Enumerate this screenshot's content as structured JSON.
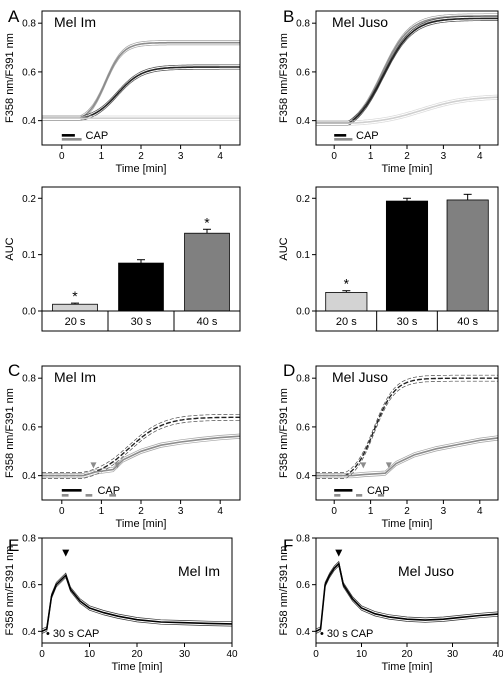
{
  "chart_data": [
    {
      "panel": "A",
      "title": "Mel Im",
      "type": "line",
      "xlabel": "Time [min]",
      "ylabel": "F358 nm/F391 nm",
      "xlim": [
        -0.5,
        4.5
      ],
      "ylim": [
        0.3,
        0.85
      ],
      "xticks": [
        "0",
        "1",
        "2",
        "3",
        "4"
      ],
      "yticks": [
        "0.4",
        "0.6",
        "0.8"
      ],
      "stimulus": {
        "label": "CAP",
        "bars": [
          {
            "start": 0,
            "end": 0.33,
            "color": "#000000"
          },
          {
            "start": 0,
            "end": 0.5,
            "color": "#8c8c8c"
          }
        ]
      },
      "series": [
        {
          "color": "#8c8c8c",
          "base": 0.41,
          "max": 0.72,
          "onset": 0.45,
          "half": 1.1,
          "k": 4.5
        },
        {
          "color": "#222222",
          "base": 0.41,
          "max": 0.62,
          "onset": 0.5,
          "half": 1.4,
          "k": 3.2
        },
        {
          "color": "#cfcfcf",
          "base": 0.41,
          "max": 0.41,
          "onset": 0.5,
          "half": 1.0,
          "k": 3.0
        }
      ]
    },
    {
      "panel": "B",
      "title": "Mel Juso",
      "type": "line",
      "xlabel": "Time [min]",
      "ylabel": "F358 nm/F391 nm",
      "xlim": [
        -0.5,
        4.5
      ],
      "ylim": [
        0.3,
        0.85
      ],
      "xticks": [
        "0",
        "1",
        "2",
        "3",
        "4"
      ],
      "yticks": [
        "0.4",
        "0.6",
        "0.8"
      ],
      "stimulus": {
        "label": "CAP",
        "bars": [
          {
            "start": 0,
            "end": 0.33,
            "color": "#000000"
          },
          {
            "start": 0,
            "end": 0.5,
            "color": "#8c8c8c"
          }
        ]
      },
      "series": [
        {
          "color": "#8c8c8c",
          "base": 0.39,
          "max": 0.83,
          "onset": 0.4,
          "half": 1.3,
          "k": 2.6
        },
        {
          "color": "#222222",
          "base": 0.39,
          "max": 0.82,
          "onset": 0.4,
          "half": 1.35,
          "k": 2.5
        },
        {
          "color": "#cfcfcf",
          "base": 0.39,
          "max": 0.5,
          "onset": 0.5,
          "half": 2.4,
          "k": 1.6
        }
      ]
    },
    {
      "panel": "",
      "type": "bar",
      "ylabel": "AUC",
      "ylim": [
        0,
        0.22
      ],
      "yticks": [
        "0.0",
        "0.1",
        "0.2"
      ],
      "categories": [
        "20 s",
        "30 s",
        "40 s"
      ],
      "values": [
        0.012,
        0.085,
        0.138
      ],
      "errors": [
        0.002,
        0.006,
        0.007
      ],
      "colors": [
        "#d3d3d3",
        "#000000",
        "#808080"
      ],
      "significance": [
        "*",
        "",
        "*"
      ]
    },
    {
      "panel": "",
      "type": "bar",
      "ylabel": "AUC",
      "ylim": [
        0,
        0.22
      ],
      "yticks": [
        "0.0",
        "0.1",
        "0.2"
      ],
      "categories": [
        "20 s",
        "30 s",
        "40 s"
      ],
      "values": [
        0.033,
        0.195,
        0.197
      ],
      "errors": [
        0.003,
        0.005,
        0.01
      ],
      "colors": [
        "#d3d3d3",
        "#000000",
        "#808080"
      ],
      "significance": [
        "*",
        "",
        ""
      ]
    },
    {
      "panel": "C",
      "title": "Mel Im",
      "type": "line",
      "xlabel": "Time [min]",
      "ylabel": "F358 nm/F391 nm",
      "xlim": [
        -0.5,
        4.5
      ],
      "ylim": [
        0.3,
        0.85
      ],
      "xticks": [
        "0",
        "1",
        "2",
        "3",
        "4"
      ],
      "yticks": [
        "0.4",
        "0.6",
        "0.8"
      ],
      "arrows": [
        0.8,
        1.4
      ],
      "stimulus": {
        "label": "CAP",
        "bars": [
          {
            "start": 0,
            "end": 0.5,
            "color": "#000000"
          },
          {
            "start": 0,
            "end": 0.17,
            "color": "#8c8c8c"
          },
          {
            "start": 0.6,
            "end": 0.77,
            "color": "#8c8c8c"
          },
          {
            "start": 1.2,
            "end": 1.37,
            "color": "#8c8c8c"
          }
        ]
      },
      "series": [
        {
          "color": "#222222",
          "dashed": true,
          "base": 0.4,
          "max": 0.64,
          "onset": 0.5,
          "half": 1.7,
          "k": 2.3
        },
        {
          "color": "#8c8c8c",
          "step": true,
          "points": [
            [
              -0.5,
              0.4
            ],
            [
              0.55,
              0.4
            ],
            [
              0.85,
              0.415
            ],
            [
              1.3,
              0.425
            ],
            [
              1.55,
              0.465
            ],
            [
              2.0,
              0.5
            ],
            [
              2.5,
              0.525
            ],
            [
              3.0,
              0.538
            ],
            [
              3.5,
              0.548
            ],
            [
              4.0,
              0.556
            ],
            [
              4.5,
              0.562
            ]
          ]
        }
      ]
    },
    {
      "panel": "D",
      "title": "Mel Juso",
      "type": "line",
      "xlabel": "Time [min]",
      "ylabel": "F358 nm/F391 nm",
      "xlim": [
        -0.5,
        4.5
      ],
      "ylim": [
        0.3,
        0.85
      ],
      "xticks": [
        "0",
        "1",
        "2",
        "3",
        "4"
      ],
      "yticks": [
        "0.4",
        "0.6",
        "0.8"
      ],
      "arrows": [
        0.8,
        1.5
      ],
      "stimulus": {
        "label": "CAP",
        "bars": [
          {
            "start": 0,
            "end": 0.5,
            "color": "#000000"
          },
          {
            "start": 0,
            "end": 0.17,
            "color": "#8c8c8c"
          },
          {
            "start": 0.6,
            "end": 0.77,
            "color": "#8c8c8c"
          },
          {
            "start": 1.2,
            "end": 1.37,
            "color": "#8c8c8c"
          }
        ]
      },
      "series": [
        {
          "color": "#222222",
          "dashed": true,
          "base": 0.4,
          "max": 0.8,
          "onset": 0.3,
          "half": 1.1,
          "k": 3.5
        },
        {
          "color": "#8c8c8c",
          "step": true,
          "points": [
            [
              -0.5,
              0.4
            ],
            [
              0.5,
              0.4
            ],
            [
              0.85,
              0.405
            ],
            [
              1.4,
              0.41
            ],
            [
              1.7,
              0.45
            ],
            [
              2.2,
              0.485
            ],
            [
              2.8,
              0.51
            ],
            [
              3.4,
              0.528
            ],
            [
              4.0,
              0.545
            ],
            [
              4.5,
              0.555
            ]
          ]
        }
      ]
    },
    {
      "panel": "E",
      "title": "Mel Im",
      "type": "line",
      "xlabel": "Time [min]",
      "ylabel": "F358 nm/F391 nm",
      "xlim": [
        0,
        40
      ],
      "ylim": [
        0.35,
        0.8
      ],
      "xticks": [
        "0",
        "10",
        "20",
        "30",
        "40"
      ],
      "yticks": [
        "0.4",
        "0.6",
        "0.8"
      ],
      "note": "• 30 s CAP",
      "peak_marker": 5,
      "series": [
        {
          "color": "#000000",
          "points": [
            [
              0,
              0.4
            ],
            [
              1,
              0.41
            ],
            [
              2,
              0.55
            ],
            [
              3,
              0.6
            ],
            [
              4,
              0.62
            ],
            [
              5,
              0.64
            ],
            [
              6,
              0.58
            ],
            [
              8,
              0.53
            ],
            [
              10,
              0.5
            ],
            [
              13,
              0.48
            ],
            [
              16,
              0.465
            ],
            [
              20,
              0.45
            ],
            [
              25,
              0.44
            ],
            [
              30,
              0.437
            ],
            [
              35,
              0.434
            ],
            [
              40,
              0.432
            ]
          ]
        }
      ]
    },
    {
      "panel": "F",
      "title": "Mel Juso",
      "type": "line",
      "xlabel": "Time [min]",
      "ylabel": "F358 nm/F391 nm",
      "xlim": [
        0,
        40
      ],
      "ylim": [
        0.35,
        0.8
      ],
      "xticks": [
        "0",
        "10",
        "20",
        "30",
        "40"
      ],
      "yticks": [
        "0.4",
        "0.6",
        "0.8"
      ],
      "note": "• 30 s CAP",
      "peak_marker": 5,
      "series": [
        {
          "color": "#000000",
          "points": [
            [
              0,
              0.4
            ],
            [
              1,
              0.41
            ],
            [
              2,
              0.6
            ],
            [
              3,
              0.64
            ],
            [
              4,
              0.67
            ],
            [
              5,
              0.69
            ],
            [
              6,
              0.6
            ],
            [
              8,
              0.54
            ],
            [
              10,
              0.5
            ],
            [
              13,
              0.475
            ],
            [
              16,
              0.462
            ],
            [
              20,
              0.452
            ],
            [
              24,
              0.448
            ],
            [
              28,
              0.452
            ],
            [
              32,
              0.46
            ],
            [
              36,
              0.468
            ],
            [
              40,
              0.474
            ]
          ]
        }
      ]
    }
  ]
}
